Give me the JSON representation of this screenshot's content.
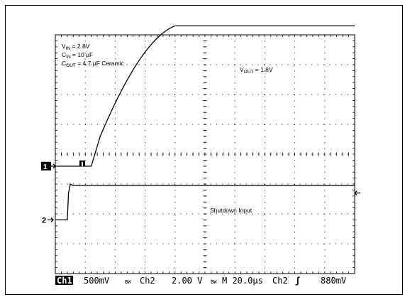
{
  "chart_data": {
    "type": "line",
    "annotations": {
      "vin": {
        "label": "V",
        "sub": "IN",
        "value": " = 2.8V"
      },
      "cin": {
        "label": "C",
        "sub": "IN",
        "value": " = 10 µF"
      },
      "cout": {
        "label": "C",
        "sub": "OUT",
        "value": " = 4.7 µF Ceramic"
      },
      "vout": {
        "label": "V",
        "sub": "OUT",
        "value": " = 1.8V"
      },
      "shutdown": "Shutdown Input"
    },
    "grid": {
      "horizontal_divisions": 10,
      "vertical_divisions": 8,
      "dotted": true
    },
    "series": [
      {
        "channel": "1",
        "x_div": [
          0,
          1.2,
          1.5,
          4.0,
          4.45,
          10
        ],
        "y_div": [
          -0.4,
          -0.4,
          0.6,
          4.3,
          4.3,
          4.3
        ]
      },
      {
        "channel": "2",
        "x_div": [
          0,
          0.4,
          0.44,
          0.5,
          0.58,
          10
        ],
        "y_div": [
          -2.2,
          -2.2,
          -1.3,
          -1.0,
          -1.05,
          -1.05
        ]
      }
    ],
    "markers": {
      "ch1_ground": {
        "label": "1",
        "y_div": -0.4
      },
      "ch2_ground": {
        "label": "2",
        "y_div": -2.2
      },
      "trigger_level_y_div": -1.3,
      "trigger_position_x_div": 0.9
    },
    "status_bar": {
      "ch1_label": "Ch1",
      "ch1_scale": "500mV",
      "ch2_label": "Ch2",
      "ch2_scale": "2.00 V",
      "bw1": "BW",
      "bw2": "BW",
      "timebase": "M 20.0µs",
      "trigger_source": "Ch2",
      "trigger_slope": "ʃ",
      "trigger_level": "880mV"
    }
  }
}
